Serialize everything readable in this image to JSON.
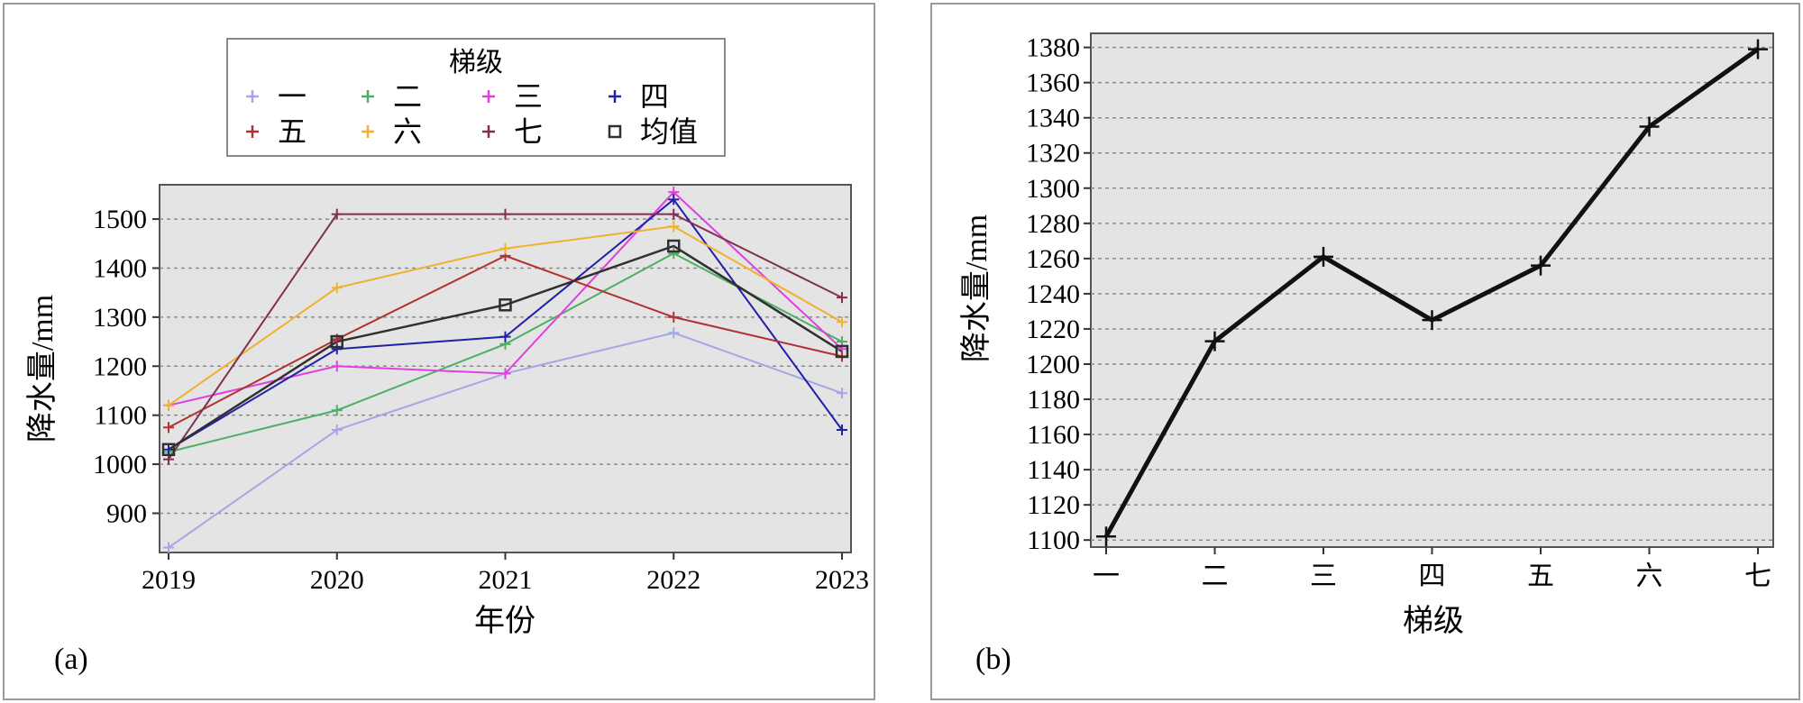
{
  "chart_data": [
    {
      "panel_label": "(a)",
      "type": "line",
      "x": [
        2019,
        2020,
        2021,
        2022,
        2023
      ],
      "xlabel": "年份",
      "ylabel": "降水量/mm",
      "ylim": [
        820,
        1570
      ],
      "yticks": [
        900,
        1000,
        1100,
        1200,
        1300,
        1400,
        1500
      ],
      "grid": "horizontal dashed",
      "legend": {
        "title": "梯级",
        "placement": "top-center",
        "columns": 4
      },
      "series": [
        {
          "name": "一",
          "color": "#a6a6e8",
          "marker": "plus",
          "values": [
            830,
            1070,
            1185,
            1268,
            1145
          ]
        },
        {
          "name": "二",
          "color": "#4caf62",
          "marker": "plus",
          "values": [
            1025,
            1110,
            1245,
            1430,
            1250
          ]
        },
        {
          "name": "三",
          "color": "#e040e0",
          "marker": "plus",
          "values": [
            1120,
            1200,
            1185,
            1555,
            1235
          ]
        },
        {
          "name": "四",
          "color": "#2020a8",
          "marker": "plus",
          "values": [
            1030,
            1235,
            1260,
            1540,
            1070
          ]
        },
        {
          "name": "五",
          "color": "#b03232",
          "marker": "plus",
          "values": [
            1075,
            1255,
            1425,
            1300,
            1220
          ]
        },
        {
          "name": "六",
          "color": "#f0b030",
          "marker": "plus",
          "values": [
            1120,
            1360,
            1440,
            1485,
            1290
          ]
        },
        {
          "name": "七",
          "color": "#803050",
          "marker": "plus",
          "values": [
            1010,
            1510,
            1510,
            1510,
            1340
          ]
        },
        {
          "name": "均值",
          "color": "#303030",
          "marker": "square",
          "values": [
            1030,
            1250,
            1325,
            1445,
            1230
          ]
        }
      ]
    },
    {
      "panel_label": "(b)",
      "type": "line",
      "categories": [
        "一",
        "二",
        "三",
        "四",
        "五",
        "六",
        "七"
      ],
      "values": [
        1102,
        1213,
        1261,
        1225,
        1256,
        1335,
        1379
      ],
      "xlabel": "梯级",
      "ylabel": "降水量/mm",
      "ylim": [
        1096,
        1388
      ],
      "yticks": [
        1100,
        1120,
        1140,
        1160,
        1180,
        1200,
        1220,
        1240,
        1260,
        1280,
        1300,
        1320,
        1340,
        1360,
        1380
      ],
      "grid": "horizontal dashed",
      "line_color": "#111111",
      "marker": "plus"
    }
  ]
}
